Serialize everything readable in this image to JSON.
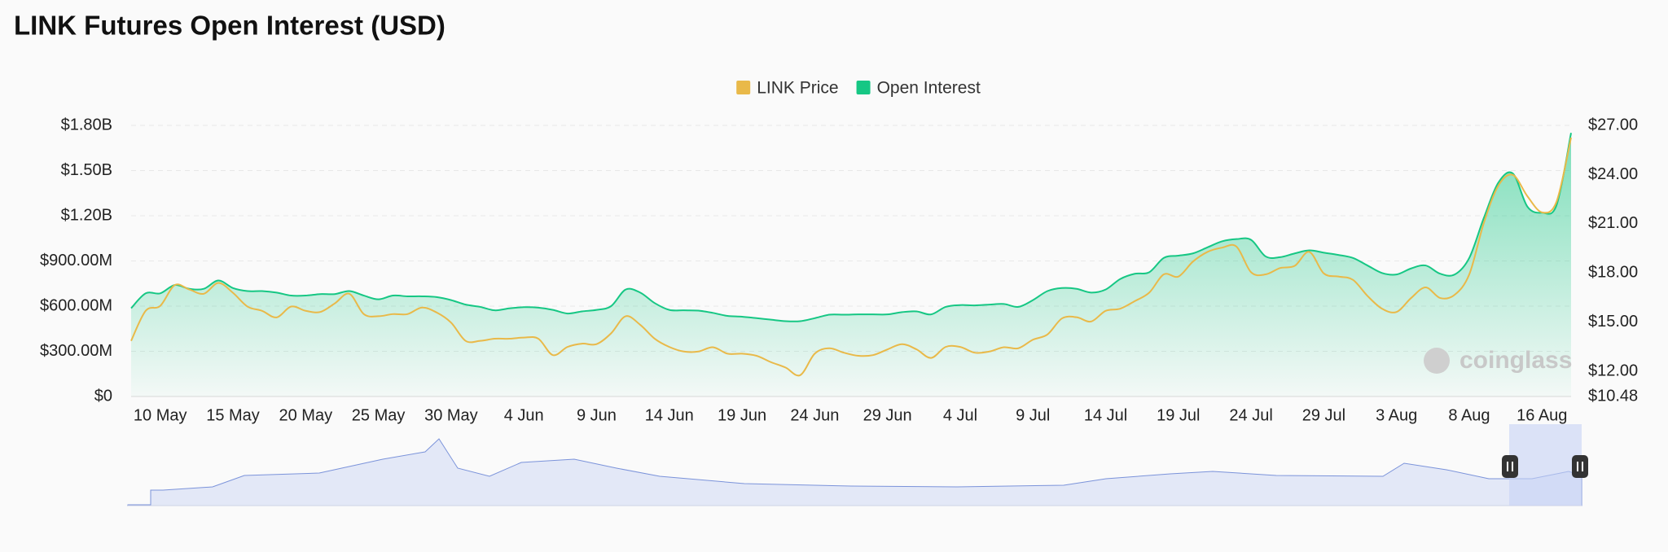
{
  "chart_data": {
    "type": "line",
    "title": "LINK Futures Open Interest (USD)",
    "watermark": "coinglass",
    "categories": [
      null,
      null,
      "10 May",
      null,
      null,
      null,
      null,
      "15 May",
      null,
      null,
      null,
      null,
      "20 May",
      null,
      null,
      null,
      null,
      "25 May",
      null,
      null,
      null,
      null,
      "30 May",
      null,
      null,
      null,
      null,
      "4 Jun",
      null,
      null,
      null,
      null,
      "9 Jun",
      null,
      null,
      null,
      null,
      "14 Jun",
      null,
      null,
      null,
      null,
      "19 Jun",
      null,
      null,
      null,
      null,
      "24 Jun",
      null,
      null,
      null,
      null,
      "29 Jun",
      null,
      null,
      null,
      null,
      "4 Jul",
      null,
      null,
      null,
      null,
      "9 Jul",
      null,
      null,
      null,
      null,
      "14 Jul",
      null,
      null,
      null,
      null,
      "19 Jul",
      null,
      null,
      null,
      null,
      "24 Jul",
      null,
      null,
      null,
      null,
      "29 Jul",
      null,
      null,
      null,
      null,
      "3 Aug",
      null,
      null,
      null,
      null,
      "8 Aug",
      null,
      null,
      null,
      null,
      "16 Aug",
      null,
      null
    ],
    "series": [
      {
        "name": "LINK Price",
        "color": "#e9b949",
        "type": "line",
        "axis": "y2",
        "values": [
          13.87,
          15.7,
          16.0,
          17.27,
          17.0,
          16.74,
          17.4,
          16.8,
          15.96,
          15.7,
          15.3,
          15.96,
          15.7,
          15.63,
          16.15,
          16.74,
          15.5,
          15.37,
          15.5,
          15.5,
          15.9,
          15.6,
          14.98,
          13.87,
          13.87,
          14.0,
          14.0,
          14.07,
          14.0,
          13.0,
          13.5,
          13.7,
          13.67,
          14.33,
          15.37,
          14.85,
          14.0,
          13.5,
          13.22,
          13.22,
          13.48,
          13.09,
          13.09,
          12.96,
          12.57,
          12.24,
          11.78,
          13.09,
          13.42,
          13.15,
          12.96,
          13.0,
          13.35,
          13.67,
          13.35,
          12.83,
          13.5,
          13.5,
          13.15,
          13.22,
          13.48,
          13.42,
          13.94,
          14.26,
          15.24,
          15.31,
          15.05,
          15.7,
          15.83,
          16.29,
          16.81,
          17.92,
          17.79,
          18.7,
          19.29,
          19.55,
          19.61,
          18.05,
          17.92,
          18.31,
          18.44,
          19.29,
          17.98,
          17.79,
          17.59,
          16.61,
          15.83,
          15.63,
          16.48,
          17.13,
          16.48,
          16.68,
          17.92,
          21.05,
          23.33,
          23.98,
          22.68,
          21.7,
          22.35,
          26.26
        ]
      },
      {
        "name": "Open Interest",
        "color": "#16c784",
        "type": "area",
        "axis": "y",
        "values": [
          586000000,
          685000000,
          685000000,
          740000000,
          715000000,
          715000000,
          770000000,
          720000000,
          700000000,
          700000000,
          690000000,
          670000000,
          670000000,
          680000000,
          680000000,
          700000000,
          670000000,
          645000000,
          670000000,
          665000000,
          665000000,
          660000000,
          640000000,
          610000000,
          595000000,
          572000000,
          585000000,
          593000000,
          590000000,
          575000000,
          551000000,
          565000000,
          575000000,
          600000000,
          710000000,
          690000000,
          620000000,
          575000000,
          572000000,
          570000000,
          555000000,
          535000000,
          530000000,
          520000000,
          510000000,
          500000000,
          500000000,
          520000000,
          543000000,
          543000000,
          545000000,
          545000000,
          545000000,
          560000000,
          565000000,
          545000000,
          595000000,
          607000000,
          605000000,
          610000000,
          614000000,
          595000000,
          640000000,
          700000000,
          720000000,
          715000000,
          690000000,
          710000000,
          780000000,
          815000000,
          825000000,
          920000000,
          935000000,
          950000000,
          990000000,
          1030000000,
          1045000000,
          1040000000,
          930000000,
          925000000,
          950000000,
          970000000,
          955000000,
          940000000,
          920000000,
          870000000,
          820000000,
          810000000,
          850000000,
          870000000,
          815000000,
          810000000,
          920000000,
          1185000000,
          1420000000,
          1480000000,
          1260000000,
          1220000000,
          1270000000,
          1750000000
        ]
      }
    ],
    "ylim": [
      0,
      1800000000
    ],
    "yticks": [
      {
        "value": 0,
        "label": "$0"
      },
      {
        "value": 300000000,
        "label": "$300.00M"
      },
      {
        "value": 600000000,
        "label": "$600.00M"
      },
      {
        "value": 900000000,
        "label": "$900.00M"
      },
      {
        "value": 1200000000,
        "label": "$1.20B"
      },
      {
        "value": 1500000000,
        "label": "$1.50B"
      },
      {
        "value": 1800000000,
        "label": "$1.80B"
      }
    ],
    "y2lim": [
      10.48,
      27
    ],
    "y2ticks": [
      {
        "value": 10.48,
        "label": "$10.48"
      },
      {
        "value": 12,
        "label": "$12.00"
      },
      {
        "value": 15,
        "label": "$15.00"
      },
      {
        "value": 18,
        "label": "$18.00"
      },
      {
        "value": 21,
        "label": "$21.00"
      },
      {
        "value": 24,
        "label": "$24.00"
      },
      {
        "value": 27,
        "label": "$27.00"
      }
    ],
    "grid": true,
    "legend": "top"
  }
}
